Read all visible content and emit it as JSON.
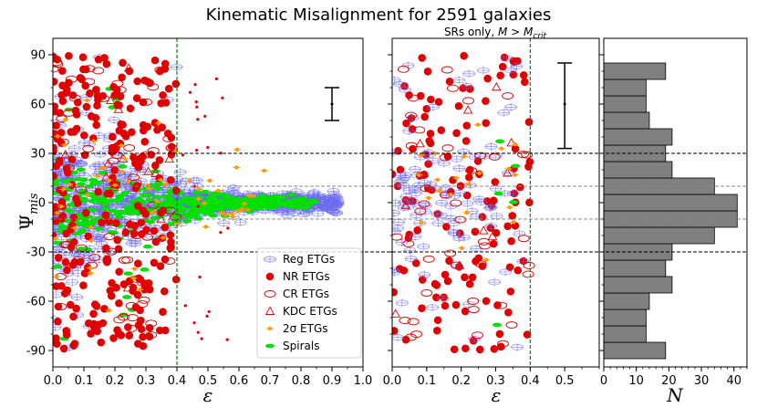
{
  "chart_data": [
    {
      "type": "scatter",
      "panel": "left",
      "title": "Kinematic Misalignment for 2591 galaxies",
      "xlabel": "ε",
      "ylabel": "Ψ_mis",
      "xlim": [
        0.0,
        1.0
      ],
      "ylim": [
        -100,
        100
      ],
      "xticks": [
        "0.0",
        "0.1",
        "0.2",
        "0.3",
        "0.4",
        "0.5",
        "0.6",
        "0.7",
        "0.8",
        "0.9",
        "1.0"
      ],
      "yticks": [
        "90",
        "60",
        "30",
        "0",
        "-30",
        "-60",
        "-90"
      ],
      "reference_lines": {
        "vertical_x": 0.4,
        "horizontal_black": [
          30,
          -30
        ],
        "horizontal_gray": [
          10,
          -10
        ]
      },
      "error_bar": {
        "x": 0.9,
        "center": 60,
        "low": 50,
        "high": 70
      },
      "legend": {
        "position": "lower-right",
        "entries": [
          {
            "label": "Reg ETGs",
            "marker": "plus-ellipse",
            "color": "#6b6bf0"
          },
          {
            "label": "NR ETGs",
            "marker": "filled-circle",
            "color": "#e00000"
          },
          {
            "label": "CR ETGs",
            "marker": "open-ellipse",
            "color": "#e00000"
          },
          {
            "label": "KDC ETGs",
            "marker": "open-triangle",
            "color": "#e00000"
          },
          {
            "label": "2σ ETGs",
            "marker": "errorbar-dot",
            "color": "#ff9900"
          },
          {
            "label": "Spirals",
            "marker": "filled-ellipse",
            "color": "#00e000"
          }
        ]
      },
      "series_summary": [
        {
          "name": "Reg ETGs",
          "x_range": [
            0.0,
            0.92
          ],
          "concentration": "Ψ near 0, spread widens at low ε"
        },
        {
          "name": "NR ETGs",
          "x_range": [
            0.0,
            0.4
          ],
          "concentration": "uniform in Ψ"
        },
        {
          "name": "CR ETGs",
          "x_range": [
            0.0,
            0.4
          ],
          "concentration": "uniform in Ψ"
        },
        {
          "name": "KDC ETGs",
          "x_range": [
            0.0,
            0.4
          ],
          "concentration": "scattered"
        },
        {
          "name": "2σ ETGs",
          "x_range": [
            0.0,
            0.7
          ],
          "concentration": "scattered"
        },
        {
          "name": "Spirals",
          "x_range": [
            0.0,
            0.85
          ],
          "concentration": "Ψ near 0"
        }
      ]
    },
    {
      "type": "scatter",
      "panel": "middle",
      "title": "SRs only, M > M_crit",
      "xlabel": "ε",
      "xlim": [
        0.0,
        0.6
      ],
      "ylim": [
        -100,
        100
      ],
      "xticks": [
        "0.0",
        "0.1",
        "0.2",
        "0.3",
        "0.4",
        "0.5"
      ],
      "reference_lines": {
        "vertical_x": 0.4,
        "horizontal_black": [
          30,
          -30
        ],
        "horizontal_gray": [
          10,
          -10
        ]
      },
      "error_bar": {
        "x": 0.5,
        "center": 60,
        "low": 33,
        "high": 85
      }
    },
    {
      "type": "bar",
      "orientation": "horizontal",
      "panel": "right",
      "xlabel": "N",
      "xlim": [
        0,
        44
      ],
      "xticks": [
        "0",
        "10",
        "20",
        "30",
        "40"
      ],
      "bin_width": 10,
      "bins": [
        {
          "y0": -95,
          "count": 19
        },
        {
          "y0": -85,
          "count": 13
        },
        {
          "y0": -75,
          "count": 13
        },
        {
          "y0": -65,
          "count": 14
        },
        {
          "y0": -55,
          "count": 21
        },
        {
          "y0": -45,
          "count": 19
        },
        {
          "y0": -35,
          "count": 21
        },
        {
          "y0": -25,
          "count": 34
        },
        {
          "y0": -15,
          "count": 41
        },
        {
          "y0": -5,
          "count": 41
        },
        {
          "y0": 5,
          "count": 34
        },
        {
          "y0": 15,
          "count": 21
        },
        {
          "y0": 25,
          "count": 19
        },
        {
          "y0": 35,
          "count": 21
        },
        {
          "y0": 45,
          "count": 14
        },
        {
          "y0": 55,
          "count": 13
        },
        {
          "y0": 65,
          "count": 13
        },
        {
          "y0": 75,
          "count": 19
        }
      ]
    }
  ],
  "text": {
    "title": "Kinematic Misalignment for 2591 galaxies",
    "subtitle_prefix": "SRs only, ",
    "subtitle_math": "M > M",
    "subtitle_sub": "crit",
    "ylabel_main": "Ψ",
    "ylabel_sub": "mis",
    "xlabel_left": "ε",
    "xlabel_mid": "ε",
    "xlabel_right": "N"
  },
  "colors": {
    "reg": "#6b6bf0",
    "nr": "#e00000",
    "spiral": "#00e000",
    "twosigma": "#ff9900",
    "bar_fill": "#808080",
    "vline": "#008800"
  }
}
